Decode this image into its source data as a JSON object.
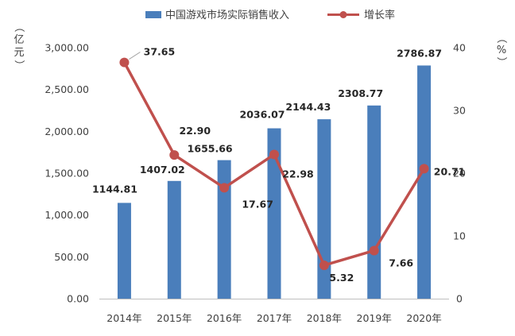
{
  "chart_data": {
    "type": "bar",
    "categories": [
      "2014年",
      "2015年",
      "2016年",
      "2017年",
      "2018年",
      "2019年",
      "2020年"
    ],
    "series": [
      {
        "name": "中国游戏市场实际销售收入",
        "type": "bar",
        "axis": "left",
        "color": "#4A7EBB",
        "values": [
          1144.81,
          1407.02,
          1655.66,
          2036.07,
          2144.43,
          2308.77,
          2786.87
        ],
        "labels": [
          "1144.81",
          "1407.02",
          "1655.66",
          "2036.07",
          "2144.43",
          "2308.77",
          "2786.87"
        ]
      },
      {
        "name": "增长率",
        "type": "line",
        "axis": "right",
        "color": "#C0504D",
        "values": [
          37.65,
          22.9,
          17.67,
          22.98,
          5.32,
          7.66,
          20.71
        ],
        "labels": [
          "37.65",
          "22.90",
          "17.67",
          "22.98",
          "5.32",
          "7.66",
          "20.71"
        ]
      }
    ],
    "y_left": {
      "label": "（亿元）",
      "ylim": [
        0,
        3000
      ],
      "ticks": [
        0,
        500,
        1000,
        1500,
        2000,
        2500,
        3000
      ],
      "tick_labels": [
        "0.00",
        "500.00",
        "1,000.00",
        "1,500.00",
        "2,000.00",
        "2,500.00",
        "3,000.00"
      ]
    },
    "y_right": {
      "label": "（%）",
      "ylim": [
        0,
        40
      ],
      "ticks": [
        0,
        10,
        20,
        30,
        40
      ],
      "tick_labels": [
        "0",
        "10",
        "20",
        "30",
        "40"
      ]
    },
    "grid": false,
    "legend": "top"
  }
}
